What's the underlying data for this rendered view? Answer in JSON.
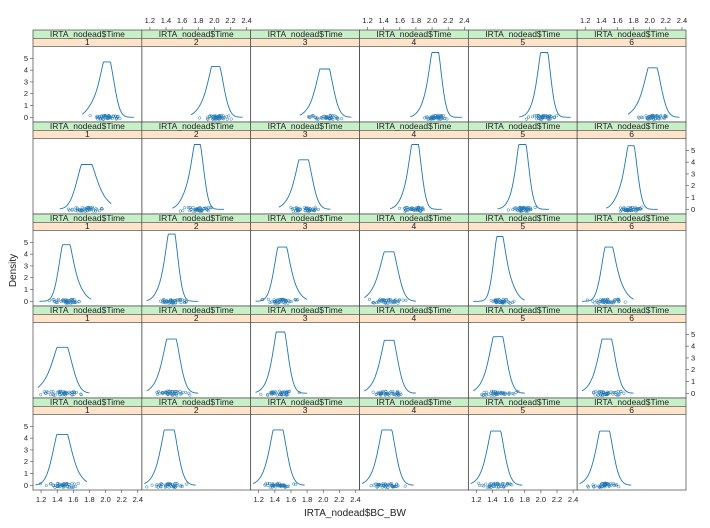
{
  "chart_data": {
    "type": "density-lattice",
    "xlabel": "IRTA_nodead$BC_BW",
    "ylabel": "Density",
    "strip_variable": "IRTA_nodead$Time",
    "columns": [
      "1",
      "2",
      "3",
      "4",
      "5",
      "6"
    ],
    "rows": 5,
    "xlim": [
      1.1,
      2.45
    ],
    "ylim": [
      -0.4,
      6.0
    ],
    "x_ticks": [
      "1.2",
      "1.4",
      "1.6",
      "1.8",
      "2.0",
      "2.2",
      "2.4"
    ],
    "y_ticks": [
      "0",
      "1",
      "2",
      "3",
      "4",
      "5"
    ],
    "series_color": "#1f77b4",
    "strip_top_color": "#c8f0c8",
    "strip_bottom_color": "#ffe4cc",
    "panels": [
      [
        {
          "center": 2.03,
          "sd": 0.075,
          "peak": 4.7,
          "shoulder": -0.12
        },
        {
          "center": 2.03,
          "sd": 0.08,
          "peak": 4.3,
          "shoulder": -0.1
        },
        {
          "center": 2.03,
          "sd": 0.085,
          "peak": 4.1,
          "shoulder": -0.08
        },
        {
          "center": 2.05,
          "sd": 0.065,
          "peak": 5.5,
          "shoulder": -0.08
        },
        {
          "center": 2.05,
          "sd": 0.065,
          "peak": 5.5,
          "shoulder": -0.06
        },
        {
          "center": 2.05,
          "sd": 0.085,
          "peak": 4.2,
          "shoulder": -0.1
        }
      ],
      [
        {
          "center": 1.75,
          "sd": 0.1,
          "peak": 3.8,
          "shoulder": 0.12
        },
        {
          "center": 1.8,
          "sd": 0.065,
          "peak": 5.5,
          "shoulder": -0.1
        },
        {
          "center": 1.77,
          "sd": 0.085,
          "peak": 4.2,
          "shoulder": -0.08
        },
        {
          "center": 1.8,
          "sd": 0.065,
          "peak": 5.5,
          "shoulder": -0.08
        },
        {
          "center": 1.78,
          "sd": 0.065,
          "peak": 5.5,
          "shoulder": -0.06
        },
        {
          "center": 1.78,
          "sd": 0.065,
          "peak": 5.4,
          "shoulder": -0.1
        }
      ],
      [
        {
          "center": 1.5,
          "sd": 0.075,
          "peak": 4.8,
          "shoulder": 0.1
        },
        {
          "center": 1.48,
          "sd": 0.065,
          "peak": 5.7,
          "shoulder": -0.08
        },
        {
          "center": 1.48,
          "sd": 0.08,
          "peak": 4.6,
          "shoulder": 0.08
        },
        {
          "center": 1.48,
          "sd": 0.09,
          "peak": 4.2,
          "shoulder": -0.1
        },
        {
          "center": 1.48,
          "sd": 0.065,
          "peak": 5.5,
          "shoulder": 0.1
        },
        {
          "center": 1.48,
          "sd": 0.075,
          "peak": 4.6,
          "shoulder": 0.1
        }
      ],
      [
        {
          "center": 1.48,
          "sd": 0.1,
          "peak": 3.9,
          "shoulder": -0.12
        },
        {
          "center": 1.48,
          "sd": 0.085,
          "peak": 4.6,
          "shoulder": -0.08
        },
        {
          "center": 1.48,
          "sd": 0.075,
          "peak": 5.2,
          "shoulder": -0.06
        },
        {
          "center": 1.48,
          "sd": 0.085,
          "peak": 4.5,
          "shoulder": -0.08
        },
        {
          "center": 1.48,
          "sd": 0.085,
          "peak": 4.8,
          "shoulder": -0.08
        },
        {
          "center": 1.48,
          "sd": 0.085,
          "peak": 4.6,
          "shoulder": -0.08
        }
      ],
      [
        {
          "center": 1.45,
          "sd": 0.095,
          "peak": 4.3,
          "shoulder": 0.08
        },
        {
          "center": 1.45,
          "sd": 0.085,
          "peak": 4.7,
          "shoulder": -0.06
        },
        {
          "center": 1.45,
          "sd": 0.085,
          "peak": 4.7,
          "shoulder": -0.06
        },
        {
          "center": 1.45,
          "sd": 0.085,
          "peak": 4.7,
          "shoulder": -0.06
        },
        {
          "center": 1.45,
          "sd": 0.085,
          "peak": 4.6,
          "shoulder": -0.06
        },
        {
          "center": 1.45,
          "sd": 0.085,
          "peak": 4.6,
          "shoulder": -0.06
        }
      ]
    ]
  }
}
